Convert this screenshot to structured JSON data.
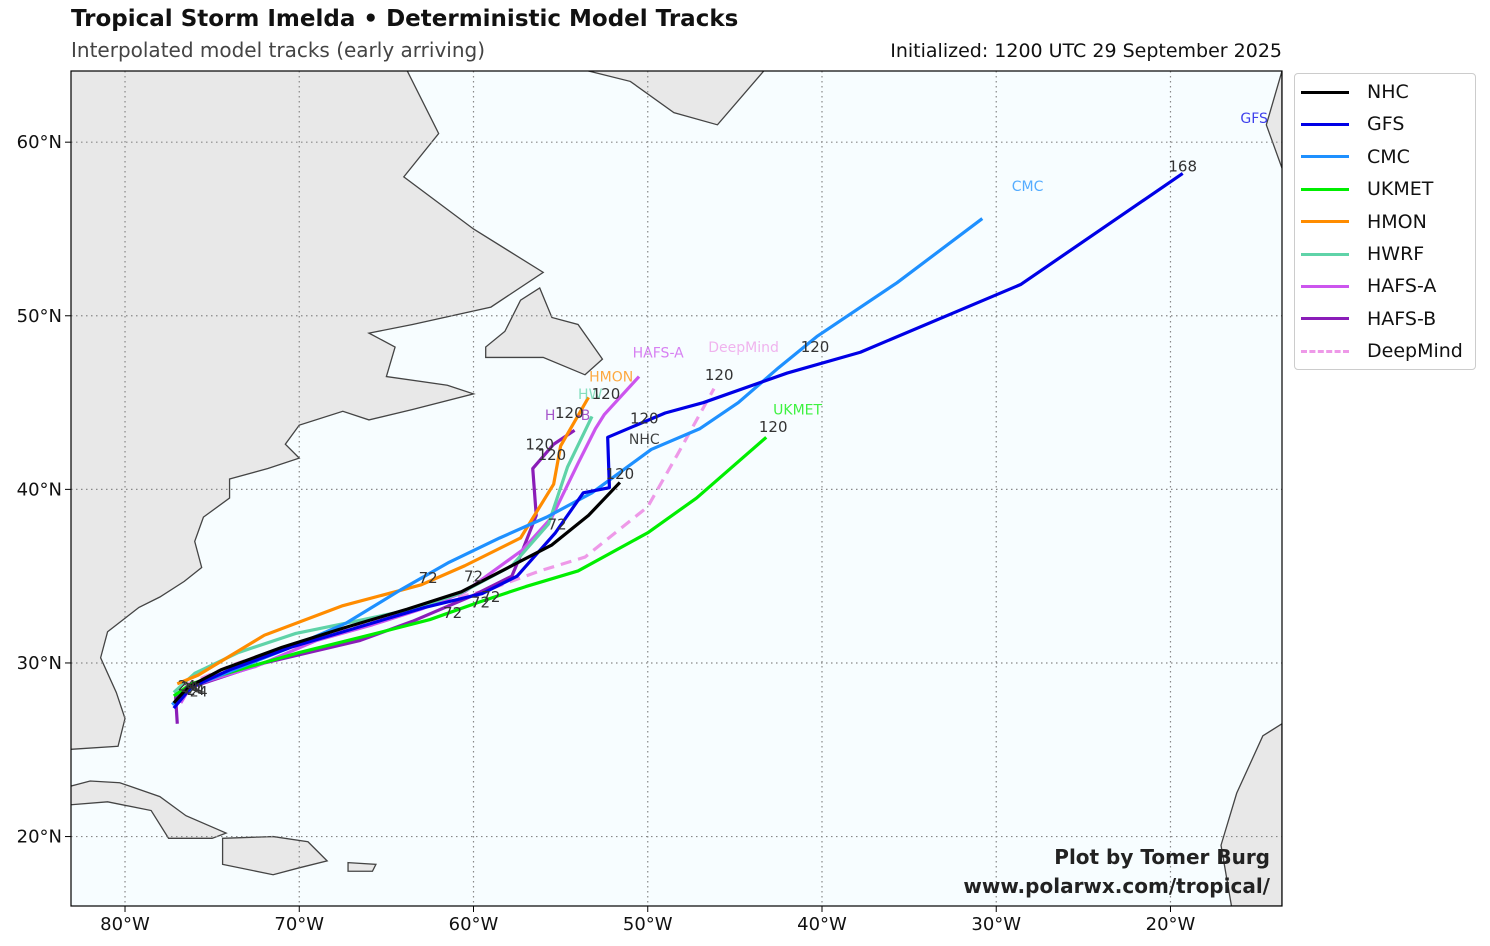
{
  "header": {
    "title": "Tropical Storm Imelda • Deterministic Model Tracks",
    "subtitle": "Interpolated model tracks (early arriving)",
    "initialized": "Initialized: 1200 UTC 29 September 2025"
  },
  "credits": {
    "line1": "Plot by Tomer Burg",
    "line2": "www.polarwx.com/tropical/"
  },
  "chart_data": {
    "type": "line",
    "xlim": [
      -83.1,
      -13.6
    ],
    "ylim": [
      16.0,
      64.1
    ],
    "x_ticks": [
      {
        "value": -80,
        "label": "80°W"
      },
      {
        "value": -70,
        "label": "70°W"
      },
      {
        "value": -60,
        "label": "60°W"
      },
      {
        "value": -50,
        "label": "50°W"
      },
      {
        "value": -40,
        "label": "40°W"
      },
      {
        "value": -30,
        "label": "30°W"
      },
      {
        "value": -20,
        "label": "20°W"
      }
    ],
    "y_ticks": [
      {
        "value": 20,
        "label": "20°N"
      },
      {
        "value": 30,
        "label": "30°N"
      },
      {
        "value": 40,
        "label": "40°N"
      },
      {
        "value": 50,
        "label": "50°N"
      },
      {
        "value": 60,
        "label": "60°N"
      }
    ],
    "grid": true,
    "legend_position": "outside-right-top",
    "colors": {
      "ocean": "#f7fdff",
      "land": "#e8e8e8",
      "coast": "#444444",
      "grid": "#888888"
    },
    "series": [
      {
        "name": "NHC",
        "color": "#000000",
        "dashed": false,
        "points": [
          [
            -77.2,
            27.7
          ],
          [
            -76.4,
            28.6
          ],
          [
            -74.5,
            29.6
          ],
          [
            -71.0,
            30.9
          ],
          [
            -67.5,
            32.0
          ],
          [
            -63.8,
            33.1
          ],
          [
            -60.7,
            34.1
          ],
          [
            -58.0,
            35.5
          ],
          [
            -55.5,
            36.8
          ],
          [
            -53.4,
            38.5
          ],
          [
            -51.6,
            40.4
          ]
        ],
        "labels": [
          {
            "text": "120",
            "lon": -51.6,
            "lat": 40.6
          },
          {
            "text": "NHC",
            "lon": -50.2,
            "lat": 42.6
          }
        ]
      },
      {
        "name": "GFS",
        "color": "#0000e6",
        "dashed": false,
        "points": [
          [
            -77.2,
            27.4
          ],
          [
            -76.2,
            28.6
          ],
          [
            -74.0,
            29.6
          ],
          [
            -70.5,
            30.9
          ],
          [
            -66.8,
            32.0
          ],
          [
            -62.8,
            33.2
          ],
          [
            -59.5,
            34.0
          ],
          [
            -57.5,
            35.0
          ],
          [
            -55.3,
            37.5
          ],
          [
            -53.7,
            39.8
          ],
          [
            -52.2,
            40.1
          ],
          [
            -52.3,
            43.0
          ],
          [
            -49.0,
            44.4
          ],
          [
            -46.8,
            45.0
          ],
          [
            -42.0,
            46.7
          ],
          [
            -37.8,
            47.9
          ],
          [
            -28.6,
            51.8
          ],
          [
            -19.3,
            58.2
          ]
        ],
        "labels": [
          {
            "text": "120",
            "lon": -50.2,
            "lat": 43.8
          },
          {
            "text": "168",
            "lon": -19.3,
            "lat": 58.3
          },
          {
            "text": "GFS",
            "lon": -15.2,
            "lat": 61.1
          }
        ]
      },
      {
        "name": "CMC",
        "color": "#1e90ff",
        "dashed": false,
        "points": [
          [
            -77.3,
            27.6
          ],
          [
            -76.0,
            28.7
          ],
          [
            -73.5,
            29.7
          ],
          [
            -70.5,
            30.9
          ],
          [
            -67.3,
            32.3
          ],
          [
            -64.2,
            34.2
          ],
          [
            -61.4,
            35.8
          ],
          [
            -58.5,
            37.2
          ],
          [
            -55.8,
            38.4
          ],
          [
            -53.2,
            39.8
          ],
          [
            -49.8,
            42.3
          ],
          [
            -47.0,
            43.5
          ],
          [
            -44.8,
            45.0
          ],
          [
            -42.5,
            47.0
          ],
          [
            -40.3,
            48.8
          ],
          [
            -35.7,
            51.9
          ],
          [
            -30.8,
            55.6
          ]
        ],
        "labels": [
          {
            "text": "72",
            "lon": -62.6,
            "lat": 34.6
          },
          {
            "text": "CMC",
            "lon": -28.2,
            "lat": 57.2
          }
        ]
      },
      {
        "name": "UKMET",
        "color": "#00ee00",
        "dashed": false,
        "points": [
          [
            -77.2,
            28.1
          ],
          [
            -76.2,
            28.8
          ],
          [
            -73.5,
            29.6
          ],
          [
            -70.0,
            30.6
          ],
          [
            -66.0,
            31.6
          ],
          [
            -62.5,
            32.5
          ],
          [
            -59.7,
            33.5
          ],
          [
            -57.0,
            34.4
          ],
          [
            -54.0,
            35.3
          ],
          [
            -50.0,
            37.5
          ],
          [
            -47.2,
            39.5
          ],
          [
            -43.2,
            43.0
          ]
        ],
        "labels": [
          {
            "text": "72",
            "lon": -59.6,
            "lat": 33.2
          },
          {
            "text": "120",
            "lon": -42.8,
            "lat": 43.3
          },
          {
            "text": "UKMET",
            "lon": -41.4,
            "lat": 44.3
          }
        ]
      },
      {
        "name": "HMON",
        "color": "#ff8c00",
        "dashed": false,
        "points": [
          [
            -77.0,
            28.8
          ],
          [
            -75.8,
            29.3
          ],
          [
            -72.0,
            31.6
          ],
          [
            -67.5,
            33.3
          ],
          [
            -63.0,
            34.5
          ],
          [
            -60.5,
            35.6
          ],
          [
            -57.3,
            37.2
          ],
          [
            -55.4,
            40.3
          ],
          [
            -55.0,
            42.5
          ],
          [
            -53.4,
            45.3
          ]
        ],
        "labels": [
          {
            "text": "HMON",
            "lon": -52.1,
            "lat": 46.2
          }
        ]
      },
      {
        "name": "HWRF",
        "color": "#5fd3a8",
        "dashed": false,
        "points": [
          [
            -77.2,
            28.3
          ],
          [
            -76.0,
            29.4
          ],
          [
            -73.5,
            30.6
          ],
          [
            -70.2,
            31.7
          ],
          [
            -66.8,
            32.4
          ],
          [
            -63.5,
            33.1
          ],
          [
            -60.8,
            34.0
          ],
          [
            -57.8,
            35.6
          ],
          [
            -55.7,
            38.0
          ],
          [
            -54.6,
            41.3
          ],
          [
            -53.2,
            44.2
          ]
        ],
        "labels": [
          {
            "text": "HW",
            "lon": -53.3,
            "lat": 45.2
          },
          {
            "text": "120",
            "lon": -52.4,
            "lat": 45.2
          }
        ]
      },
      {
        "name": "HAFS-A",
        "color": "#cc55ee",
        "dashed": false,
        "points": [
          [
            -76.8,
            27.7
          ],
          [
            -76.2,
            28.7
          ],
          [
            -72.5,
            29.8
          ],
          [
            -69.0,
            31.3
          ],
          [
            -65.8,
            32.2
          ],
          [
            -63.0,
            33.1
          ],
          [
            -60.5,
            34.1
          ],
          [
            -57.2,
            36.5
          ],
          [
            -55.5,
            38.4
          ],
          [
            -54.0,
            41.5
          ],
          [
            -53.0,
            43.5
          ],
          [
            -52.5,
            44.3
          ],
          [
            -50.5,
            46.5
          ]
        ],
        "labels": [
          {
            "text": "72",
            "lon": -60.0,
            "lat": 34.7
          },
          {
            "text": "72",
            "lon": -55.2,
            "lat": 37.7
          },
          {
            "text": "120",
            "lon": -55.5,
            "lat": 41.7
          },
          {
            "text": "HAFS-A",
            "lon": -49.4,
            "lat": 47.6
          }
        ]
      },
      {
        "name": "HAFS-B",
        "color": "#8a1db8",
        "dashed": false,
        "points": [
          [
            -77.0,
            26.5
          ],
          [
            -77.1,
            28.1
          ],
          [
            -76.2,
            28.6
          ],
          [
            -72.0,
            30.0
          ],
          [
            -66.5,
            31.3
          ],
          [
            -63.5,
            32.4
          ],
          [
            -60.0,
            33.9
          ],
          [
            -57.8,
            35.0
          ],
          [
            -57.3,
            36.2
          ],
          [
            -56.4,
            38.5
          ],
          [
            -56.6,
            41.2
          ],
          [
            -55.4,
            42.6
          ],
          [
            -54.2,
            43.4
          ]
        ],
        "labels": [
          {
            "text": "72",
            "lon": -61.2,
            "lat": 32.6
          },
          {
            "text": "120",
            "lon": -56.2,
            "lat": 42.3
          },
          {
            "text": "H",
            "lon": -55.6,
            "lat": 44.0
          },
          {
            "text": "-B",
            "lon": -53.7,
            "lat": 44.0
          },
          {
            "text": "120",
            "lon": -54.5,
            "lat": 44.1
          }
        ]
      },
      {
        "name": "DeepMind",
        "color": "#ee99e8",
        "dashed": true,
        "points": [
          [
            -76.6,
            28.7
          ],
          [
            -73.8,
            29.9
          ],
          [
            -70.0,
            31.2
          ],
          [
            -66.0,
            32.4
          ],
          [
            -62.0,
            33.5
          ],
          [
            -59.2,
            34.2
          ],
          [
            -56.2,
            35.3
          ],
          [
            -53.6,
            36.1
          ],
          [
            -50.0,
            39.0
          ],
          [
            -48.3,
            42.0
          ],
          [
            -46.2,
            45.8
          ]
        ],
        "labels": [
          {
            "text": "72",
            "lon": -59.0,
            "lat": 33.5
          },
          {
            "text": "120",
            "lon": -45.9,
            "lat": 46.3
          },
          {
            "text": "DeepMind",
            "lon": -44.5,
            "lat": 47.9
          },
          {
            "text": "120",
            "lon": -40.4,
            "lat": 47.9
          }
        ]
      }
    ],
    "start_labels": [
      "24",
      "24",
      "24",
      "24",
      "24"
    ]
  }
}
